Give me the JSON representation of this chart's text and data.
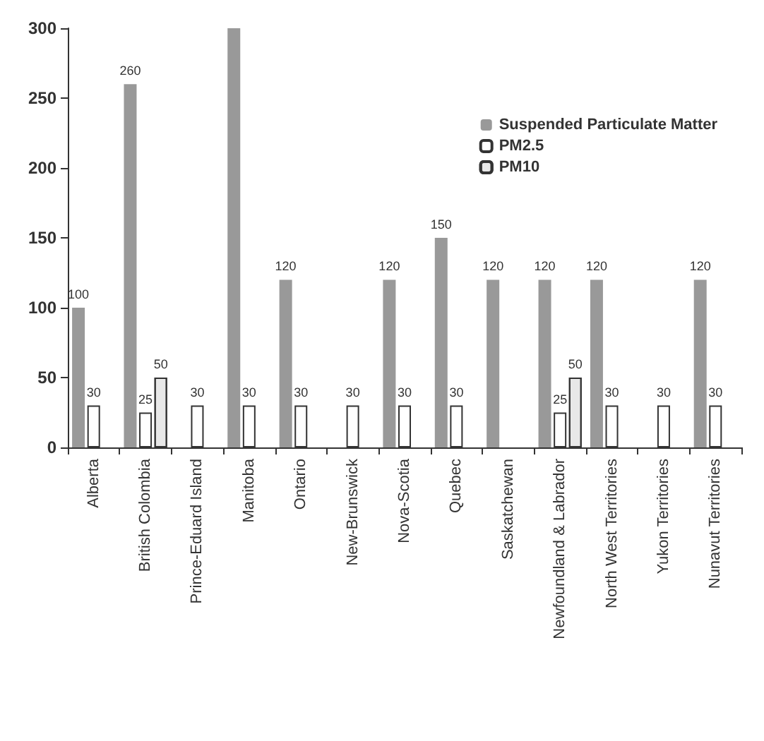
{
  "chart_data": {
    "type": "bar",
    "categories": [
      "Alberta",
      "British Colombia",
      "Prince-Eduard Island",
      "Manitoba",
      "Ontario",
      "New-Brunswick",
      "Nova-Scotia",
      "Quebec",
      "Saskatchewan",
      "Newfoundland & Labrador",
      "North West Territories",
      "Yukon Territories",
      "Nunavut Territories"
    ],
    "series": [
      {
        "name": "Suspended Particulate Matter",
        "color": "#999999",
        "values": [
          100,
          260,
          null,
          300,
          120,
          null,
          120,
          150,
          120,
          120,
          120,
          null,
          120
        ],
        "value_labels": [
          "100",
          "260",
          null,
          null,
          "120",
          null,
          "120",
          "150",
          "120",
          "120",
          "120",
          null,
          "120"
        ]
      },
      {
        "name": "PM2.5",
        "color": "#ffffff",
        "values": [
          30,
          25,
          30,
          30,
          30,
          30,
          30,
          30,
          null,
          25,
          30,
          30,
          30
        ],
        "value_labels": [
          "30",
          "25",
          "30",
          "30",
          "30",
          "30",
          "30",
          "30",
          null,
          "25",
          "30",
          "30",
          "30"
        ]
      },
      {
        "name": "PM10",
        "color": "#e8e8e8",
        "values": [
          null,
          50,
          null,
          null,
          null,
          null,
          null,
          null,
          null,
          50,
          null,
          null,
          null
        ],
        "value_labels": [
          null,
          "50",
          null,
          null,
          null,
          null,
          null,
          null,
          null,
          "50",
          null,
          null,
          null
        ]
      }
    ],
    "ylim": [
      0,
      300
    ],
    "yticks": [
      0,
      50,
      100,
      150,
      200,
      250,
      300
    ],
    "grid": false,
    "legend": "top right"
  }
}
